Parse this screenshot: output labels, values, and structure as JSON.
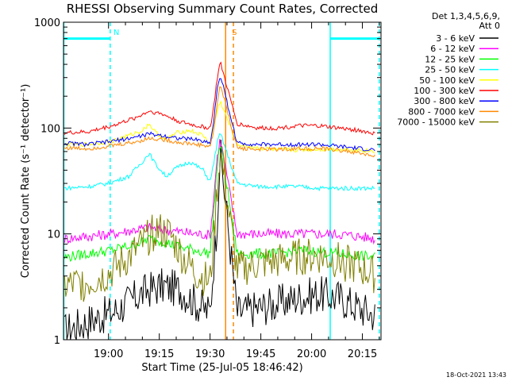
{
  "chart_data": {
    "type": "line",
    "title": "RHESSI Observing Summary Count Rates, Corrected",
    "xlabel": "Start Time (25-Jul-05 18:46:42)",
    "ylabel": "Corrected Count Rate (s⁻¹ detector⁻¹)",
    "y_scale": "log",
    "ylim": [
      1,
      1000
    ],
    "xlim_minutes_since_1846": [
      0.7,
      94.5
    ],
    "x_ticks": [
      {
        "label": "19:00",
        "min": 14
      },
      {
        "label": "19:15",
        "min": 29
      },
      {
        "label": "19:30",
        "min": 44
      },
      {
        "label": "19:45",
        "min": 59
      },
      {
        "label": "20:00",
        "min": 74
      },
      {
        "label": "20:15",
        "min": 89
      }
    ],
    "y_ticks": [
      {
        "label": "1",
        "v": 1
      },
      {
        "label": "10",
        "v": 10
      },
      {
        "label": "100",
        "v": 100
      },
      {
        "label": "1000",
        "v": 1000
      }
    ],
    "legend_header": [
      "Det 1,3,4,5,6,9,",
      "Att 0"
    ],
    "series": [
      {
        "name": "3 - 6 keV",
        "color": "#000000",
        "x": [
          1,
          8,
          15,
          22,
          26,
          30,
          35,
          40,
          44,
          45,
          46,
          47,
          52,
          58,
          64,
          70,
          76,
          82,
          88,
          93
        ],
        "y": [
          1.2,
          1.5,
          1.8,
          2.5,
          3,
          3.2,
          3,
          2.2,
          1.8,
          5,
          12,
          60,
          1.8,
          2,
          2.2,
          2.5,
          2.7,
          2.5,
          2,
          1.7
        ]
      },
      {
        "name": "6 - 12 keV",
        "color": "#ff00ff",
        "x": [
          1,
          8,
          15,
          22,
          26,
          30,
          35,
          40,
          44,
          45,
          46,
          47,
          52,
          58,
          64,
          70,
          76,
          82,
          88,
          93
        ],
        "y": [
          9,
          9.5,
          10,
          11,
          11.5,
          11,
          10.5,
          10,
          9.8,
          20,
          50,
          80,
          10,
          10,
          10,
          10,
          10,
          10,
          9.5,
          9
        ]
      },
      {
        "name": "12 - 25 keV",
        "color": "#00ff00",
        "x": [
          1,
          8,
          15,
          22,
          26,
          30,
          35,
          40,
          44,
          45,
          46,
          47,
          52,
          58,
          64,
          70,
          76,
          82,
          88,
          93
        ],
        "y": [
          6,
          6.5,
          7,
          8,
          9,
          8.5,
          7.5,
          7,
          6.5,
          15,
          40,
          75,
          6.5,
          6.5,
          6.5,
          7,
          6.8,
          6.5,
          6.2,
          6
        ]
      },
      {
        "name": "25 - 50 keV",
        "color": "#00ffff",
        "x": [
          1,
          8,
          14,
          20,
          24,
          26,
          28,
          31,
          34,
          38,
          42,
          44,
          45,
          46,
          47,
          52,
          58,
          64,
          70,
          76,
          82,
          88,
          93
        ],
        "y": [
          27,
          28,
          30,
          35,
          48,
          58,
          45,
          35,
          42,
          48,
          40,
          31,
          45,
          70,
          90,
          30,
          28,
          28,
          28,
          27,
          27,
          27,
          27
        ]
      },
      {
        "name": "50 - 100 keV",
        "color": "#ffff00",
        "x": [
          1,
          8,
          15,
          20,
          24,
          26,
          28,
          31,
          34,
          38,
          42,
          44,
          45,
          46,
          47,
          52,
          58,
          64,
          70,
          76,
          82,
          88,
          93
        ],
        "y": [
          70,
          70,
          75,
          85,
          95,
          110,
          90,
          78,
          90,
          95,
          85,
          70,
          100,
          140,
          180,
          70,
          65,
          62,
          62,
          63,
          63,
          62,
          60
        ]
      },
      {
        "name": "100 - 300 keV",
        "color": "#ff0000",
        "x": [
          1,
          8,
          15,
          22,
          26,
          30,
          35,
          40,
          44,
          45,
          46,
          47,
          52,
          58,
          64,
          70,
          76,
          82,
          88,
          93
        ],
        "y": [
          90,
          92,
          105,
          125,
          145,
          135,
          115,
          105,
          100,
          150,
          280,
          420,
          110,
          100,
          100,
          105,
          105,
          100,
          95,
          88
        ]
      },
      {
        "name": "300 - 800 keV",
        "color": "#0000ff",
        "x": [
          1,
          8,
          15,
          22,
          26,
          30,
          35,
          40,
          44,
          45,
          46,
          47,
          52,
          58,
          64,
          70,
          76,
          82,
          88,
          93
        ],
        "y": [
          72,
          70,
          75,
          82,
          88,
          85,
          80,
          78,
          72,
          110,
          220,
          320,
          72,
          70,
          70,
          70,
          70,
          67,
          64,
          62
        ]
      },
      {
        "name": "800 - 7000 keV",
        "color": "#ff8800",
        "x": [
          1,
          8,
          15,
          22,
          26,
          30,
          35,
          40,
          44,
          45,
          46,
          47,
          52,
          58,
          64,
          70,
          76,
          82,
          88,
          93
        ],
        "y": [
          65,
          64,
          68,
          74,
          80,
          78,
          73,
          70,
          67,
          90,
          160,
          260,
          65,
          63,
          63,
          64,
          64,
          62,
          58,
          54
        ]
      },
      {
        "name": "7000 - 15000 keV",
        "color": "#808000",
        "x": [
          1,
          8,
          14,
          20,
          24,
          28,
          32,
          36,
          40,
          44,
          45,
          46,
          47,
          52,
          58,
          64,
          70,
          76,
          82,
          88,
          93
        ],
        "y": [
          3.2,
          3.5,
          4.2,
          6,
          8,
          11,
          10,
          6,
          4.2,
          3.5,
          8,
          25,
          60,
          4.5,
          5.2,
          5.5,
          6,
          6.2,
          5.6,
          4.8,
          4
        ]
      }
    ],
    "annotations": [
      {
        "label": "N",
        "color": "#00ffff",
        "x_min": 14.5
      },
      {
        "label": "S",
        "color": "#ff8800",
        "x_min": 49.5
      }
    ],
    "vertical_lines": [
      {
        "x_min": 0.8,
        "color": "#00ffff",
        "dash": false
      },
      {
        "x_min": 14.5,
        "color": "#00ffff",
        "dash": true
      },
      {
        "x_min": 48.6,
        "color": "#ff8800",
        "dash": false
      },
      {
        "x_min": 50.9,
        "color": "#ff8800",
        "dash": true
      },
      {
        "x_min": 79.5,
        "color": "#00ffff",
        "dash": false
      },
      {
        "x_min": 94.0,
        "color": "#00ffff",
        "dash": true
      }
    ],
    "horizontal_bars": [
      {
        "x0_min": 0.8,
        "x1_min": 14.5,
        "y": 700,
        "color": "#00ffff"
      },
      {
        "x0_min": 79.5,
        "x1_min": 94.0,
        "y": 700,
        "color": "#00ffff"
      }
    ],
    "grid": false,
    "legend_position": "right"
  },
  "footer": {
    "timestamp": "18-Oct-2021 13:43"
  },
  "colors": {
    "axis": "#000000",
    "background": "#ffffff"
  }
}
